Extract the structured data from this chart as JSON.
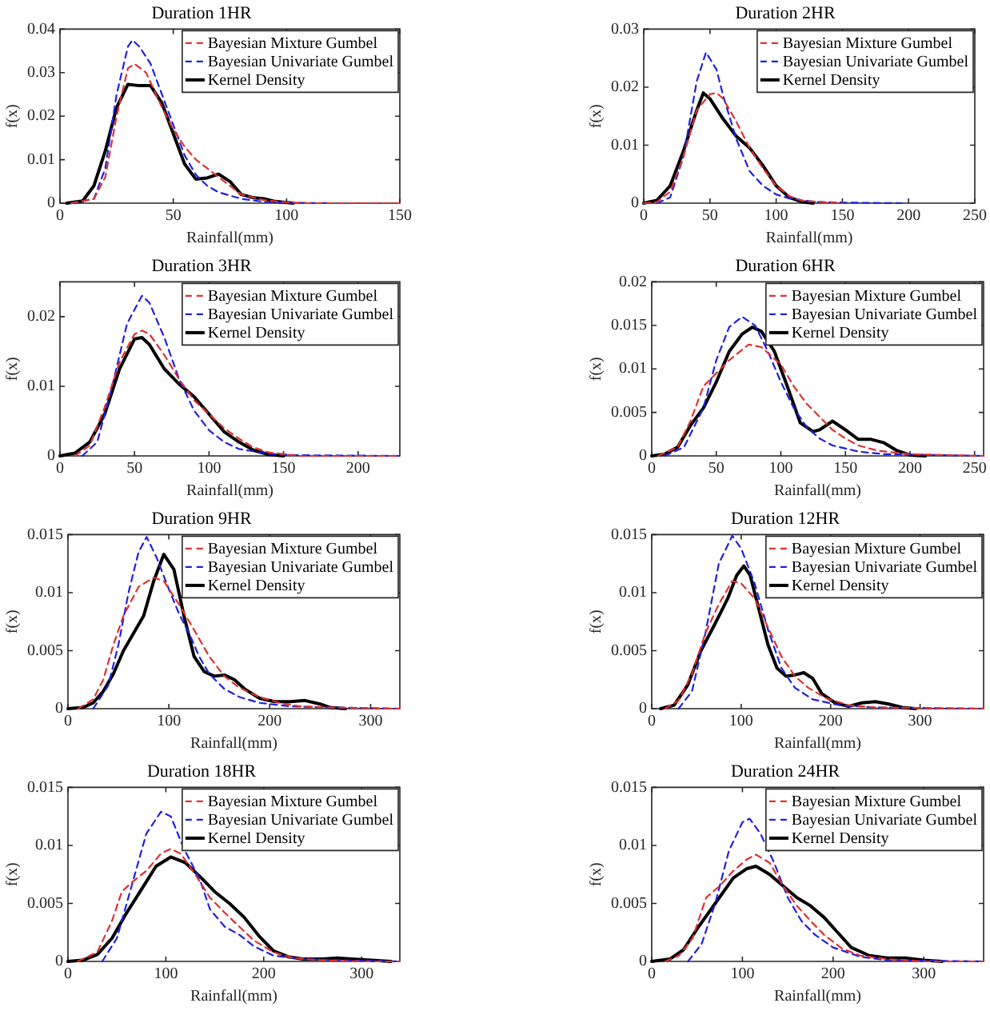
{
  "chart_data": [
    {
      "type": "line",
      "title": "Duration 1HR",
      "xlabel": "Rainfall(mm)",
      "ylabel": "f(x)",
      "xlim": [
        0,
        150
      ],
      "xticks": [
        0,
        50,
        100,
        150
      ],
      "ylim": [
        0,
        0.04
      ],
      "yticks": [
        0,
        0.01,
        0.02,
        0.03,
        0.04
      ],
      "legend": "top right",
      "grid": false,
      "marker": "none",
      "series": [
        {
          "name": "Bayesian Mixture Gumbel",
          "color": "#e03030",
          "line_style": "dashed",
          "x": [
            5,
            15,
            20,
            25,
            30,
            33,
            38,
            45,
            50,
            55,
            60,
            65,
            70,
            75,
            80,
            90,
            100,
            110,
            150
          ],
          "values": [
            0,
            0.001,
            0.006,
            0.02,
            0.031,
            0.032,
            0.03,
            0.022,
            0.017,
            0.013,
            0.01,
            0.008,
            0.006,
            0.004,
            0.002,
            0.0007,
            0.0002,
            0,
            0
          ]
        },
        {
          "name": "Bayesian Univariate Gumbel",
          "color": "#2020e0",
          "line_style": "dashed",
          "x": [
            5,
            15,
            20,
            25,
            30,
            32,
            35,
            40,
            45,
            50,
            55,
            60,
            65,
            70,
            80,
            90,
            100,
            120
          ],
          "values": [
            0,
            0.001,
            0.008,
            0.025,
            0.036,
            0.0375,
            0.036,
            0.032,
            0.025,
            0.018,
            0.011,
            0.0065,
            0.004,
            0.0025,
            0.001,
            0.0003,
            0.0001,
            0
          ]
        },
        {
          "name": "Kernel Density",
          "color": "#000000",
          "line_style": "solid",
          "x": [
            3,
            10,
            15,
            20,
            25,
            30,
            35,
            40,
            45,
            50,
            55,
            60,
            65,
            70,
            75,
            80,
            85,
            90,
            95,
            103
          ],
          "values": [
            0,
            0.0005,
            0.004,
            0.012,
            0.022,
            0.0273,
            0.027,
            0.027,
            0.023,
            0.016,
            0.009,
            0.0055,
            0.0058,
            0.0067,
            0.005,
            0.002,
            0.0013,
            0.001,
            0.0004,
            0
          ]
        }
      ]
    },
    {
      "type": "line",
      "title": "Duration 2HR",
      "xlabel": "Rainfall(mm)",
      "ylabel": "f(x)",
      "xlim": [
        0,
        250
      ],
      "xticks": [
        0,
        50,
        100,
        150,
        200,
        250
      ],
      "ylim": [
        0,
        0.03
      ],
      "yticks": [
        0,
        0.01,
        0.02,
        0.03
      ],
      "legend": "top right",
      "grid": false,
      "marker": "none",
      "series": [
        {
          "name": "Bayesian Mixture Gumbel",
          "color": "#e03030",
          "line_style": "dashed",
          "x": [
            0,
            10,
            20,
            30,
            40,
            50,
            55,
            60,
            70,
            80,
            90,
            100,
            110,
            120,
            150
          ],
          "values": [
            0,
            0.0002,
            0.002,
            0.008,
            0.016,
            0.0188,
            0.019,
            0.018,
            0.014,
            0.0095,
            0.006,
            0.003,
            0.0012,
            0.0004,
            0
          ]
        },
        {
          "name": "Bayesian Univariate Gumbel",
          "color": "#2020e0",
          "line_style": "dashed",
          "x": [
            10,
            20,
            30,
            40,
            47,
            55,
            60,
            70,
            80,
            90,
            100,
            110,
            130,
            150,
            195
          ],
          "values": [
            0,
            0.001,
            0.008,
            0.021,
            0.026,
            0.023,
            0.0185,
            0.011,
            0.0055,
            0.003,
            0.0015,
            0.0008,
            0.0002,
            0.0001,
            0
          ]
        },
        {
          "name": "Kernel Density",
          "color": "#000000",
          "line_style": "solid",
          "x": [
            0,
            10,
            20,
            30,
            40,
            45,
            50,
            60,
            70,
            80,
            90,
            100,
            110,
            120,
            128
          ],
          "values": [
            0,
            0.0005,
            0.003,
            0.009,
            0.016,
            0.019,
            0.018,
            0.0145,
            0.0115,
            0.0095,
            0.0065,
            0.003,
            0.001,
            0.0002,
            0
          ]
        }
      ]
    },
    {
      "type": "line",
      "title": "Duration 3HR",
      "xlabel": "Rainfall(mm)",
      "ylabel": "f(x)",
      "xlim": [
        0,
        228
      ],
      "xticks": [
        0,
        50,
        100,
        150,
        200
      ],
      "ylim": [
        0,
        0.025
      ],
      "yticks": [
        0,
        0.01,
        0.02
      ],
      "legend": "top right",
      "grid": false,
      "marker": "none",
      "series": [
        {
          "name": "Bayesian Mixture Gumbel",
          "color": "#e03030",
          "line_style": "dashed",
          "x": [
            10,
            20,
            30,
            40,
            50,
            55,
            60,
            70,
            80,
            90,
            100,
            110,
            120,
            130,
            140,
            160,
            228
          ],
          "values": [
            0,
            0.0015,
            0.007,
            0.0135,
            0.0175,
            0.018,
            0.0175,
            0.0145,
            0.011,
            0.008,
            0.006,
            0.004,
            0.0025,
            0.0012,
            0.0005,
            0,
            0
          ]
        },
        {
          "name": "Bayesian Univariate Gumbel",
          "color": "#2020e0",
          "line_style": "dashed",
          "x": [
            15,
            25,
            35,
            45,
            55,
            60,
            70,
            80,
            90,
            100,
            110,
            120,
            140,
            160,
            228
          ],
          "values": [
            0,
            0.002,
            0.01,
            0.019,
            0.023,
            0.022,
            0.017,
            0.011,
            0.0065,
            0.0037,
            0.002,
            0.001,
            0.0003,
            0.0001,
            0
          ]
        },
        {
          "name": "Kernel Density",
          "color": "#000000",
          "line_style": "solid",
          "x": [
            0,
            10,
            20,
            30,
            40,
            50,
            55,
            60,
            70,
            80,
            90,
            100,
            110,
            120,
            130,
            140,
            150
          ],
          "values": [
            0,
            0.0004,
            0.002,
            0.006,
            0.0125,
            0.0168,
            0.017,
            0.016,
            0.0125,
            0.0103,
            0.0085,
            0.006,
            0.0035,
            0.002,
            0.0008,
            0.0002,
            0
          ]
        }
      ]
    },
    {
      "type": "line",
      "title": "Duration 6HR",
      "xlabel": "Rainfall(mm)",
      "ylabel": "f(x)",
      "xlim": [
        0,
        257
      ],
      "xticks": [
        0,
        50,
        100,
        150,
        200,
        250
      ],
      "ylim": [
        0,
        0.02
      ],
      "yticks": [
        0,
        0.005,
        0.01,
        0.015,
        0.02
      ],
      "legend": "top right",
      "grid": false,
      "marker": "none",
      "series": [
        {
          "name": "Bayesian Mixture Gumbel",
          "color": "#e03030",
          "line_style": "dashed",
          "x": [
            5,
            20,
            30,
            40,
            50,
            60,
            75,
            85,
            100,
            110,
            120,
            130,
            140,
            150,
            160,
            175,
            200,
            257
          ],
          "values": [
            0,
            0.001,
            0.004,
            0.008,
            0.0095,
            0.011,
            0.0128,
            0.0125,
            0.0105,
            0.008,
            0.006,
            0.0045,
            0.003,
            0.002,
            0.0012,
            0.0006,
            0.0002,
            0
          ]
        },
        {
          "name": "Bayesian Univariate Gumbel",
          "color": "#2020e0",
          "line_style": "dashed",
          "x": [
            10,
            25,
            40,
            50,
            60,
            70,
            80,
            90,
            100,
            110,
            120,
            130,
            140,
            160,
            180,
            257
          ],
          "values": [
            0,
            0.001,
            0.0055,
            0.011,
            0.0148,
            0.016,
            0.015,
            0.012,
            0.0085,
            0.0055,
            0.0033,
            0.002,
            0.0012,
            0.0005,
            0.0002,
            0
          ]
        },
        {
          "name": "Kernel Density",
          "color": "#000000",
          "line_style": "solid",
          "x": [
            0,
            10,
            20,
            30,
            40,
            50,
            60,
            70,
            78,
            85,
            95,
            105,
            115,
            125,
            130,
            140,
            150,
            160,
            170,
            180,
            190,
            200,
            212
          ],
          "values": [
            0,
            0.0002,
            0.001,
            0.0035,
            0.0055,
            0.0085,
            0.012,
            0.014,
            0.0148,
            0.0143,
            0.012,
            0.008,
            0.0038,
            0.0028,
            0.003,
            0.004,
            0.003,
            0.0019,
            0.0019,
            0.0015,
            0.0006,
            0.0001,
            0
          ]
        }
      ]
    },
    {
      "type": "line",
      "title": "Duration 9HR",
      "xlabel": "Rainfall(mm)",
      "ylabel": "f(x)",
      "xlim": [
        0,
        329
      ],
      "xticks": [
        0,
        100,
        200,
        300
      ],
      "ylim": [
        0,
        0.015
      ],
      "yticks": [
        0,
        0.005,
        0.01,
        0.015
      ],
      "legend": "top right",
      "grid": false,
      "marker": "none",
      "series": [
        {
          "name": "Bayesian Mixture Gumbel",
          "color": "#e03030",
          "line_style": "dashed",
          "x": [
            10,
            25,
            35,
            45,
            55,
            70,
            85,
            95,
            110,
            125,
            140,
            155,
            170,
            190,
            210,
            230,
            260,
            329
          ],
          "values": [
            0,
            0.0008,
            0.0025,
            0.0055,
            0.008,
            0.0105,
            0.0113,
            0.011,
            0.009,
            0.0068,
            0.0045,
            0.0028,
            0.0018,
            0.001,
            0.0005,
            0.0002,
            0.0001,
            0
          ]
        },
        {
          "name": "Bayesian Univariate Gumbel",
          "color": "#2020e0",
          "line_style": "dashed",
          "x": [
            25,
            40,
            50,
            60,
            70,
            78,
            88,
            100,
            110,
            120,
            130,
            140,
            155,
            170,
            190,
            220,
            260,
            329
          ],
          "values": [
            0,
            0.002,
            0.0055,
            0.01,
            0.0135,
            0.0148,
            0.013,
            0.0103,
            0.0082,
            0.0065,
            0.0045,
            0.003,
            0.0017,
            0.001,
            0.0005,
            0.0002,
            0.0001,
            0
          ]
        },
        {
          "name": "Kernel Density",
          "color": "#000000",
          "line_style": "solid",
          "x": [
            0,
            15,
            25,
            35,
            45,
            55,
            65,
            75,
            85,
            95,
            105,
            115,
            125,
            135,
            145,
            155,
            165,
            175,
            190,
            205,
            220,
            235,
            250,
            260,
            275
          ],
          "values": [
            0,
            0.0001,
            0.0005,
            0.0015,
            0.003,
            0.005,
            0.0065,
            0.008,
            0.011,
            0.0133,
            0.012,
            0.008,
            0.0045,
            0.0032,
            0.0028,
            0.0029,
            0.0025,
            0.0017,
            0.0009,
            0.0006,
            0.0006,
            0.0007,
            0.0004,
            0.0001,
            0
          ]
        }
      ]
    },
    {
      "type": "line",
      "title": "Duration 12HR",
      "xlabel": "Rainfall(mm)",
      "ylabel": "f(x)",
      "xlim": [
        0,
        371
      ],
      "xticks": [
        0,
        100,
        200,
        300
      ],
      "ylim": [
        0,
        0.015
      ],
      "yticks": [
        0,
        0.005,
        0.01,
        0.015
      ],
      "legend": "top right",
      "grid": false,
      "marker": "none",
      "series": [
        {
          "name": "Bayesian Mixture Gumbel",
          "color": "#e03030",
          "line_style": "dashed",
          "x": [
            15,
            30,
            45,
            60,
            75,
            90,
            100,
            115,
            130,
            145,
            160,
            175,
            195,
            220,
            250,
            371
          ],
          "values": [
            0,
            0.0007,
            0.003,
            0.0065,
            0.009,
            0.011,
            0.0108,
            0.0095,
            0.007,
            0.0045,
            0.0028,
            0.0018,
            0.0009,
            0.0003,
            0.0001,
            0
          ]
        },
        {
          "name": "Bayesian Univariate Gumbel",
          "color": "#2020e0",
          "line_style": "dashed",
          "x": [
            30,
            45,
            60,
            75,
            90,
            100,
            115,
            130,
            145,
            160,
            180,
            210,
            250,
            371
          ],
          "values": [
            0,
            0.0015,
            0.0065,
            0.0125,
            0.0149,
            0.0138,
            0.0108,
            0.0068,
            0.0035,
            0.0018,
            0.0008,
            0.0003,
            0.0001,
            0
          ]
        },
        {
          "name": "Kernel Density",
          "color": "#000000",
          "line_style": "solid",
          "x": [
            10,
            25,
            40,
            55,
            70,
            85,
            95,
            103,
            110,
            120,
            130,
            140,
            150,
            160,
            170,
            180,
            190,
            205,
            220,
            235,
            250,
            265,
            280,
            295
          ],
          "values": [
            0,
            0.0003,
            0.002,
            0.005,
            0.0072,
            0.0095,
            0.0115,
            0.0123,
            0.0115,
            0.0085,
            0.0055,
            0.0035,
            0.0028,
            0.0029,
            0.0031,
            0.0026,
            0.0013,
            0.0005,
            0.0002,
            0.0005,
            0.0006,
            0.0004,
            0.0001,
            0
          ]
        }
      ]
    },
    {
      "type": "line",
      "title": "Duration 18HR",
      "xlabel": "Rainfall(mm)",
      "ylabel": "f(x)",
      "xlim": [
        0,
        339
      ],
      "xticks": [
        0,
        100,
        200,
        300
      ],
      "ylim": [
        0,
        0.015
      ],
      "yticks": [
        0,
        0.005,
        0.01,
        0.015
      ],
      "legend": "top right",
      "grid": false,
      "marker": "none",
      "series": [
        {
          "name": "Bayesian Mixture Gumbel",
          "color": "#e03030",
          "line_style": "dashed",
          "x": [
            10,
            30,
            45,
            55,
            65,
            80,
            95,
            105,
            115,
            130,
            145,
            160,
            175,
            190,
            210,
            230,
            260,
            300,
            339
          ],
          "values": [
            0,
            0.0008,
            0.0035,
            0.006,
            0.0068,
            0.0078,
            0.0093,
            0.0097,
            0.0093,
            0.0075,
            0.0055,
            0.0042,
            0.003,
            0.0018,
            0.0008,
            0.0003,
            0.0001,
            0,
            0
          ]
        },
        {
          "name": "Bayesian Univariate Gumbel",
          "color": "#2020e0",
          "line_style": "dashed",
          "x": [
            35,
            50,
            65,
            80,
            95,
            105,
            118,
            135,
            145,
            160,
            175,
            190,
            210,
            240,
            280,
            339
          ],
          "values": [
            0,
            0.002,
            0.0065,
            0.011,
            0.0129,
            0.0125,
            0.0098,
            0.007,
            0.0045,
            0.003,
            0.0023,
            0.0013,
            0.0005,
            0.0002,
            0.0001,
            0
          ]
        },
        {
          "name": "Kernel Density",
          "color": "#000000",
          "line_style": "solid",
          "x": [
            0,
            15,
            30,
            45,
            60,
            75,
            90,
            105,
            120,
            135,
            150,
            165,
            180,
            195,
            210,
            225,
            240,
            260,
            275,
            290,
            310,
            330
          ],
          "values": [
            0,
            0.0001,
            0.0006,
            0.002,
            0.0042,
            0.0062,
            0.0082,
            0.009,
            0.0085,
            0.0073,
            0.006,
            0.005,
            0.0038,
            0.0022,
            0.0009,
            0.0004,
            0.0002,
            0.0002,
            0.0003,
            0.0002,
            0.0001,
            0
          ]
        }
      ]
    },
    {
      "type": "line",
      "title": "Duration 24HR",
      "xlabel": "Rainfall(mm)",
      "ylabel": "f(x)",
      "xlim": [
        0,
        366
      ],
      "xticks": [
        0,
        100,
        200,
        300
      ],
      "ylim": [
        0,
        0.015
      ],
      "yticks": [
        0,
        0.005,
        0.01,
        0.015
      ],
      "legend": "top right",
      "grid": false,
      "marker": "none",
      "series": [
        {
          "name": "Bayesian Mixture Gumbel",
          "color": "#e03030",
          "line_style": "dashed",
          "x": [
            15,
            30,
            45,
            60,
            75,
            90,
            105,
            115,
            130,
            145,
            160,
            175,
            190,
            210,
            230,
            260,
            300,
            366
          ],
          "values": [
            0,
            0.0005,
            0.002,
            0.0055,
            0.0065,
            0.0078,
            0.0088,
            0.0092,
            0.0085,
            0.0065,
            0.0048,
            0.0035,
            0.0023,
            0.0011,
            0.0005,
            0.0002,
            0,
            0
          ]
        },
        {
          "name": "Bayesian Univariate Gumbel",
          "color": "#2020e0",
          "line_style": "dashed",
          "x": [
            40,
            55,
            70,
            85,
            100,
            108,
            120,
            135,
            150,
            165,
            180,
            200,
            230,
            260,
            366
          ],
          "values": [
            0,
            0.0015,
            0.005,
            0.0095,
            0.012,
            0.0123,
            0.011,
            0.0085,
            0.0055,
            0.0035,
            0.0023,
            0.0012,
            0.0004,
            0.0001,
            0
          ]
        },
        {
          "name": "Kernel Density",
          "color": "#000000",
          "line_style": "solid",
          "x": [
            0,
            20,
            35,
            50,
            70,
            90,
            105,
            115,
            130,
            145,
            160,
            175,
            190,
            205,
            220,
            240,
            260,
            280,
            300,
            320
          ],
          "values": [
            0,
            0.0002,
            0.001,
            0.0028,
            0.005,
            0.0072,
            0.008,
            0.0082,
            0.0075,
            0.0065,
            0.0055,
            0.0048,
            0.0038,
            0.0025,
            0.0012,
            0.0005,
            0.0003,
            0.0003,
            0.0001,
            0
          ]
        }
      ]
    }
  ]
}
